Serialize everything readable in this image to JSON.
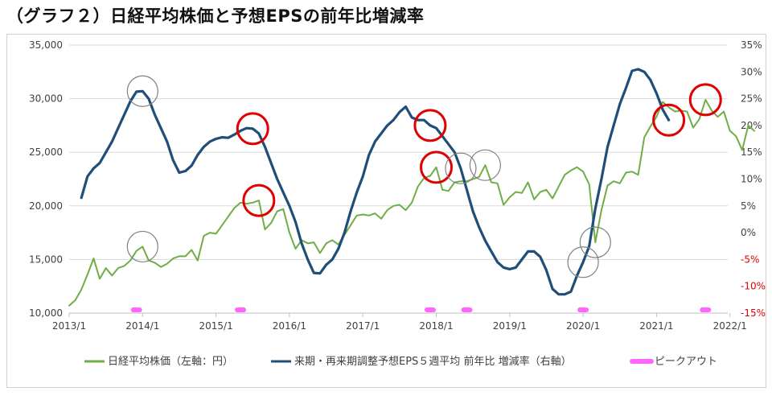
{
  "title": "（グラフ２）日経平均株価と予想EPSの前年比増減率",
  "chart_data": {
    "type": "line",
    "title": "（グラフ２）日経平均株価と予想EPSの前年比増減率",
    "x_ticks": [
      "2013/1",
      "2014/1",
      "2015/1",
      "2016/1",
      "2017/1",
      "2018/1",
      "2019/1",
      "2020/1",
      "2021/1",
      "2022/1"
    ],
    "y_left": {
      "min": 10000,
      "max": 35000,
      "ticks": [
        "10,000",
        "15,000",
        "20,000",
        "25,000",
        "30,000",
        "35,000"
      ]
    },
    "y_right": {
      "min": -15,
      "max": 35,
      "ticks": [
        "-15%",
        "-10%",
        "-5%",
        "0%",
        "5%",
        "10%",
        "15%",
        "20%",
        "25%",
        "30%",
        "35%"
      ]
    },
    "grid": "horizontal",
    "legend_position": "bottom",
    "series": [
      {
        "name": "日経平均株価（左軸：円）",
        "color": "#70ad47",
        "axis": "left",
        "points": [
          [
            "2013-01",
            10700
          ],
          [
            "2013-02",
            11200
          ],
          [
            "2013-03",
            12200
          ],
          [
            "2013-04",
            13600
          ],
          [
            "2013-05",
            15100
          ],
          [
            "2013-06",
            13200
          ],
          [
            "2013-07",
            14200
          ],
          [
            "2013-08",
            13500
          ],
          [
            "2013-09",
            14200
          ],
          [
            "2013-10",
            14400
          ],
          [
            "2013-11",
            14900
          ],
          [
            "2013-12",
            15800
          ],
          [
            "2014-01",
            16200
          ],
          [
            "2014-02",
            14900
          ],
          [
            "2014-03",
            14700
          ],
          [
            "2014-04",
            14300
          ],
          [
            "2014-05",
            14600
          ],
          [
            "2014-06",
            15100
          ],
          [
            "2014-07",
            15300
          ],
          [
            "2014-08",
            15300
          ],
          [
            "2014-09",
            15900
          ],
          [
            "2014-10",
            14900
          ],
          [
            "2014-11",
            17200
          ],
          [
            "2014-12",
            17500
          ],
          [
            "2015-01",
            17400
          ],
          [
            "2015-02",
            18200
          ],
          [
            "2015-03",
            19000
          ],
          [
            "2015-04",
            19800
          ],
          [
            "2015-05",
            20300
          ],
          [
            "2015-06",
            20200
          ],
          [
            "2015-07",
            20300
          ],
          [
            "2015-08",
            20500
          ],
          [
            "2015-09",
            17800
          ],
          [
            "2015-10",
            18400
          ],
          [
            "2015-11",
            19500
          ],
          [
            "2015-12",
            19700
          ],
          [
            "2016-01",
            17500
          ],
          [
            "2016-02",
            16000
          ],
          [
            "2016-03",
            16800
          ],
          [
            "2016-04",
            16500
          ],
          [
            "2016-05",
            16600
          ],
          [
            "2016-06",
            15600
          ],
          [
            "2016-07",
            16500
          ],
          [
            "2016-08",
            16800
          ],
          [
            "2016-09",
            16400
          ],
          [
            "2016-10",
            17300
          ],
          [
            "2016-11",
            18200
          ],
          [
            "2016-12",
            19100
          ],
          [
            "2017-01",
            19200
          ],
          [
            "2017-02",
            19100
          ],
          [
            "2017-03",
            19300
          ],
          [
            "2017-04",
            18800
          ],
          [
            "2017-05",
            19600
          ],
          [
            "2017-06",
            20000
          ],
          [
            "2017-07",
            20100
          ],
          [
            "2017-08",
            19600
          ],
          [
            "2017-09",
            20300
          ],
          [
            "2017-10",
            21800
          ],
          [
            "2017-11",
            22600
          ],
          [
            "2017-12",
            22800
          ],
          [
            "2018-01",
            23600
          ],
          [
            "2018-02",
            21500
          ],
          [
            "2018-03",
            21400
          ],
          [
            "2018-04",
            22200
          ],
          [
            "2018-05",
            22300
          ],
          [
            "2018-06",
            22300
          ],
          [
            "2018-07",
            22500
          ],
          [
            "2018-08",
            22700
          ],
          [
            "2018-09",
            23800
          ],
          [
            "2018-10",
            22200
          ],
          [
            "2018-11",
            22100
          ],
          [
            "2018-12",
            20100
          ],
          [
            "2019-01",
            20800
          ],
          [
            "2019-02",
            21300
          ],
          [
            "2019-03",
            21200
          ],
          [
            "2019-04",
            22200
          ],
          [
            "2019-05",
            20600
          ],
          [
            "2019-06",
            21300
          ],
          [
            "2019-07",
            21500
          ],
          [
            "2019-08",
            20700
          ],
          [
            "2019-09",
            21800
          ],
          [
            "2019-10",
            22900
          ],
          [
            "2019-11",
            23300
          ],
          [
            "2019-12",
            23600
          ],
          [
            "2020-01",
            23200
          ],
          [
            "2020-02",
            22000
          ],
          [
            "2020-03",
            16600
          ],
          [
            "2020-04",
            19600
          ],
          [
            "2020-05",
            21900
          ],
          [
            "2020-06",
            22300
          ],
          [
            "2020-07",
            22100
          ],
          [
            "2020-08",
            23100
          ],
          [
            "2020-09",
            23200
          ],
          [
            "2020-10",
            22900
          ],
          [
            "2020-11",
            26400
          ],
          [
            "2020-12",
            27400
          ],
          [
            "2021-01",
            28300
          ],
          [
            "2021-02",
            29700
          ],
          [
            "2021-03",
            29200
          ],
          [
            "2021-04",
            28800
          ],
          [
            "2021-05",
            28900
          ],
          [
            "2021-06",
            28800
          ],
          [
            "2021-07",
            27300
          ],
          [
            "2021-08",
            28100
          ],
          [
            "2021-09",
            29900
          ],
          [
            "2021-10",
            28900
          ],
          [
            "2021-11",
            28300
          ],
          [
            "2021-12",
            28800
          ],
          [
            "2022-01",
            27000
          ],
          [
            "2022-02",
            26500
          ],
          [
            "2022-03",
            25200
          ],
          [
            "2022-04",
            27500
          ],
          [
            "2022-05",
            27000
          ]
        ]
      },
      {
        "name": "来期・再来期調整予想EPS５週平均 前年比 増減率（右軸）",
        "color": "#1f4e79",
        "axis": "right",
        "points": [
          [
            "2013-03",
            6.5
          ],
          [
            "2013-04",
            10.5
          ],
          [
            "2013-05",
            12.0
          ],
          [
            "2013-06",
            13.0
          ],
          [
            "2013-07",
            15.0
          ],
          [
            "2013-08",
            17.0
          ],
          [
            "2013-09",
            19.5
          ],
          [
            "2013-10",
            22.0
          ],
          [
            "2013-11",
            24.5
          ],
          [
            "2013-12",
            26.3
          ],
          [
            "2014-01",
            26.4
          ],
          [
            "2014-02",
            25.0
          ],
          [
            "2014-03",
            22.0
          ],
          [
            "2014-04",
            19.5
          ],
          [
            "2014-05",
            17.0
          ],
          [
            "2014-06",
            13.5
          ],
          [
            "2014-07",
            11.2
          ],
          [
            "2014-08",
            11.5
          ],
          [
            "2014-09",
            12.5
          ],
          [
            "2014-10",
            14.5
          ],
          [
            "2014-11",
            16.0
          ],
          [
            "2014-12",
            17.0
          ],
          [
            "2015-01",
            17.5
          ],
          [
            "2015-02",
            17.8
          ],
          [
            "2015-03",
            17.7
          ],
          [
            "2015-04",
            18.3
          ],
          [
            "2015-05",
            19.0
          ],
          [
            "2015-06",
            19.5
          ],
          [
            "2015-07",
            19.4
          ],
          [
            "2015-08",
            18.5
          ],
          [
            "2015-09",
            16.0
          ],
          [
            "2015-10",
            13.0
          ],
          [
            "2015-11",
            10.0
          ],
          [
            "2015-12",
            7.5
          ],
          [
            "2016-01",
            5.0
          ],
          [
            "2016-02",
            2.0
          ],
          [
            "2016-03",
            -2.0
          ],
          [
            "2016-04",
            -5.0
          ],
          [
            "2016-05",
            -7.5
          ],
          [
            "2016-06",
            -7.6
          ],
          [
            "2016-07",
            -6.0
          ],
          [
            "2016-08",
            -5.0
          ],
          [
            "2016-09",
            -3.0
          ],
          [
            "2016-10",
            0.0
          ],
          [
            "2016-11",
            4.0
          ],
          [
            "2016-12",
            7.5
          ],
          [
            "2017-01",
            10.5
          ],
          [
            "2017-02",
            14.5
          ],
          [
            "2017-03",
            17.0
          ],
          [
            "2017-04",
            18.5
          ],
          [
            "2017-05",
            20.0
          ],
          [
            "2017-06",
            21.0
          ],
          [
            "2017-07",
            22.5
          ],
          [
            "2017-08",
            23.5
          ],
          [
            "2017-09",
            21.5
          ],
          [
            "2017-10",
            21.0
          ],
          [
            "2017-11",
            21.0
          ],
          [
            "2017-12",
            20.0
          ],
          [
            "2018-01",
            19.5
          ],
          [
            "2018-02",
            18.0
          ],
          [
            "2018-03",
            16.5
          ],
          [
            "2018-04",
            15.0
          ],
          [
            "2018-05",
            12.0
          ],
          [
            "2018-06",
            8.0
          ],
          [
            "2018-07",
            4.0
          ],
          [
            "2018-08",
            1.0
          ],
          [
            "2018-09",
            -1.5
          ],
          [
            "2018-10",
            -3.5
          ],
          [
            "2018-11",
            -5.5
          ],
          [
            "2018-12",
            -6.5
          ],
          [
            "2019-01",
            -6.8
          ],
          [
            "2019-02",
            -6.5
          ],
          [
            "2019-03",
            -5.0
          ],
          [
            "2019-04",
            -3.5
          ],
          [
            "2019-05",
            -3.5
          ],
          [
            "2019-06",
            -4.5
          ],
          [
            "2019-07",
            -7.0
          ],
          [
            "2019-08",
            -10.5
          ],
          [
            "2019-09",
            -11.5
          ],
          [
            "2019-10",
            -11.5
          ],
          [
            "2019-11",
            -11.0
          ],
          [
            "2019-12",
            -8.0
          ],
          [
            "2020-01",
            -5.5
          ],
          [
            "2020-02",
            -2.5
          ],
          [
            "2020-03",
            4.5
          ],
          [
            "2020-04",
            10.0
          ],
          [
            "2020-05",
            16.0
          ],
          [
            "2020-06",
            20.0
          ],
          [
            "2020-07",
            24.0
          ],
          [
            "2020-08",
            27.0
          ],
          [
            "2020-09",
            30.2
          ],
          [
            "2020-10",
            30.5
          ],
          [
            "2020-11",
            30.0
          ],
          [
            "2020-12",
            28.5
          ],
          [
            "2021-01",
            26.0
          ],
          [
            "2021-02",
            23.0
          ],
          [
            "2021-03",
            21.0
          ]
        ]
      },
      {
        "name": "ピークアウト",
        "color": "#ff66ff",
        "type": "marker",
        "x": [
          "2013-12",
          "2015-05",
          "2017-12",
          "2018-06",
          "2020-01",
          "2021-09"
        ]
      }
    ]
  },
  "legend": {
    "item1": "日経平均株価（左軸：円）",
    "item2": "来期・再来期調整予想EPS５週平均 前年比 増減率（右軸）",
    "item3": "ピークアウト"
  }
}
